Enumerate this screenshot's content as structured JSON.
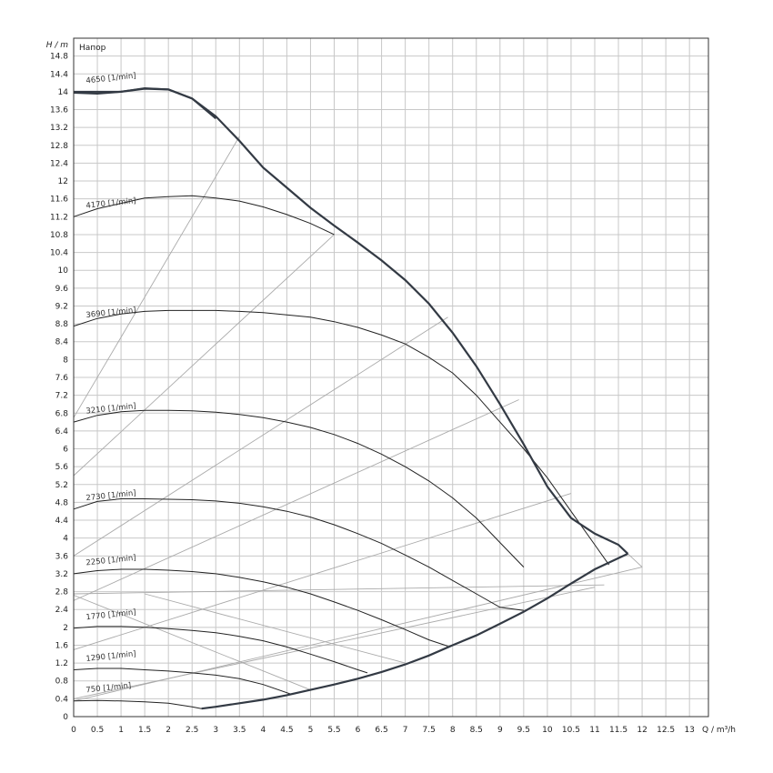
{
  "chart_data": {
    "type": "line",
    "y_axis_title": "H / m",
    "x_axis_title": "Q / m³/h",
    "inner_label": "Напор",
    "xlim": [
      0,
      13.4
    ],
    "ylim": [
      0,
      15.2
    ],
    "grid": true,
    "x_ticks": [
      0,
      0.5,
      1,
      1.5,
      2,
      2.5,
      3,
      3.5,
      4,
      4.5,
      5,
      5.5,
      6,
      6.5,
      7,
      7.5,
      8,
      8.5,
      9,
      9.5,
      10,
      10.5,
      11,
      11.5,
      12,
      12.5,
      13
    ],
    "y_ticks": [
      0,
      0.4,
      0.8,
      1.2,
      1.6,
      2,
      2.4,
      2.8,
      3.2,
      3.6,
      4,
      4.4,
      4.8,
      5.2,
      5.6,
      6,
      6.4,
      6.8,
      7.2,
      7.6,
      8,
      8.4,
      8.8,
      9.2,
      9.6,
      10,
      10.4,
      10.8,
      11.2,
      11.6,
      12,
      12.4,
      12.8,
      13.2,
      13.6,
      14,
      14.4,
      14.8
    ],
    "series": [
      {
        "name": "4650 [1/min]",
        "x": [
          0,
          1,
          1.5,
          2,
          2.5,
          3
        ],
        "y": [
          14.0,
          14.0,
          14.08,
          14.05,
          13.85,
          13.4
        ]
      },
      {
        "name": "4170 [1/min]",
        "x": [
          0,
          0.5,
          1,
          1.5,
          2,
          2.5,
          3,
          3.5,
          4,
          4.5,
          5,
          5.5
        ],
        "y": [
          11.2,
          11.38,
          11.5,
          11.62,
          11.65,
          11.67,
          11.62,
          11.55,
          11.42,
          11.25,
          11.05,
          10.8
        ]
      },
      {
        "name": "3690 [1/min]",
        "x": [
          0,
          0.5,
          1,
          1.5,
          2,
          2.5,
          3,
          3.5,
          4,
          4.5,
          5,
          5.5,
          6,
          6.5,
          7,
          7.5,
          8,
          8.5,
          9,
          9.5,
          10,
          10.5,
          11,
          11.3
        ],
        "y": [
          8.75,
          8.92,
          9.02,
          9.08,
          9.1,
          9.1,
          9.1,
          9.08,
          9.05,
          9.0,
          8.95,
          8.85,
          8.72,
          8.55,
          8.35,
          8.05,
          7.7,
          7.2,
          6.6,
          6.0,
          5.35,
          4.6,
          3.85,
          3.4
        ]
      },
      {
        "name": "3210 [1/min]",
        "x": [
          0,
          0.5,
          1,
          1.5,
          2,
          2.5,
          3,
          3.5,
          4,
          4.5,
          5,
          5.5,
          6,
          6.5,
          7,
          7.5,
          8,
          8.5,
          9,
          9.5
        ],
        "y": [
          6.6,
          6.75,
          6.83,
          6.86,
          6.86,
          6.85,
          6.82,
          6.77,
          6.7,
          6.6,
          6.48,
          6.32,
          6.12,
          5.88,
          5.6,
          5.28,
          4.9,
          4.45,
          3.9,
          3.35
        ]
      },
      {
        "name": "2730 [1/min]",
        "x": [
          0,
          0.5,
          1,
          1.5,
          2,
          2.5,
          3,
          3.5,
          4,
          4.5,
          5,
          5.5,
          6,
          6.5,
          7,
          7.5,
          8,
          8.5,
          9,
          9.5
        ],
        "y": [
          4.65,
          4.82,
          4.88,
          4.88,
          4.87,
          4.86,
          4.83,
          4.78,
          4.7,
          4.6,
          4.47,
          4.3,
          4.1,
          3.88,
          3.62,
          3.35,
          3.05,
          2.75,
          2.45,
          2.38
        ]
      },
      {
        "name": "2250 [1/min]",
        "x": [
          0,
          0.5,
          1,
          1.5,
          2,
          2.5,
          3,
          3.5,
          4,
          4.5,
          5,
          5.5,
          6,
          6.5,
          7,
          7.5,
          7.9
        ],
        "y": [
          3.2,
          3.27,
          3.3,
          3.3,
          3.28,
          3.25,
          3.2,
          3.12,
          3.02,
          2.9,
          2.75,
          2.57,
          2.38,
          2.17,
          1.95,
          1.72,
          1.58
        ]
      },
      {
        "name": "1770 [1/min]",
        "x": [
          0,
          0.5,
          1,
          1.5,
          2,
          2.5,
          3,
          3.5,
          4,
          4.5,
          5,
          5.5,
          6,
          6.2
        ],
        "y": [
          1.98,
          2.02,
          2.02,
          2.0,
          1.97,
          1.93,
          1.88,
          1.8,
          1.7,
          1.56,
          1.4,
          1.23,
          1.05,
          0.98
        ]
      },
      {
        "name": "1290 [1/min]",
        "x": [
          0,
          0.5,
          1,
          1.5,
          2,
          2.5,
          3,
          3.5,
          4,
          4.6
        ],
        "y": [
          1.05,
          1.08,
          1.08,
          1.05,
          1.02,
          0.98,
          0.93,
          0.85,
          0.72,
          0.5
        ]
      },
      {
        "name": "750 [1/min]",
        "x": [
          0,
          0.5,
          1,
          1.5,
          2,
          2.5,
          2.7
        ],
        "y": [
          0.35,
          0.36,
          0.35,
          0.33,
          0.3,
          0.22,
          0.18
        ]
      }
    ],
    "max_curve": {
      "x": [
        0,
        0.5,
        1,
        1.5,
        2,
        2.5,
        3,
        3.5,
        4,
        4.5,
        5,
        5.5,
        6,
        6.5,
        7,
        7.5,
        8,
        8.5,
        9,
        9.5,
        10,
        10.5,
        11,
        11.5,
        11.7
      ],
      "y": [
        13.98,
        13.96,
        14.0,
        14.07,
        14.05,
        13.85,
        13.45,
        12.9,
        12.3,
        11.85,
        11.4,
        11.0,
        10.62,
        10.22,
        9.78,
        9.25,
        8.6,
        7.85,
        7.0,
        6.1,
        5.15,
        4.45,
        4.1,
        3.85,
        3.65
      ]
    },
    "min_curve": {
      "x": [
        2.7,
        3,
        3.5,
        4,
        4.5,
        5,
        5.5,
        6,
        6.5,
        7,
        7.5,
        8,
        8.5,
        9,
        9.5,
        10,
        10.5,
        11,
        11.5,
        11.7
      ],
      "y": [
        0.18,
        0.22,
        0.3,
        0.38,
        0.48,
        0.6,
        0.72,
        0.85,
        1.0,
        1.17,
        1.37,
        1.6,
        1.82,
        2.08,
        2.35,
        2.65,
        2.98,
        3.3,
        3.55,
        3.65
      ]
    },
    "efficiency_lines": [
      {
        "x": [
          0,
          3.5
        ],
        "y": [
          6.7,
          13.0
        ]
      },
      {
        "x": [
          0,
          5.5
        ],
        "y": [
          5.4,
          10.8
        ]
      },
      {
        "x": [
          0,
          7.9
        ],
        "y": [
          3.6,
          8.95
        ]
      },
      {
        "x": [
          0,
          9.4
        ],
        "y": [
          2.6,
          7.1
        ]
      },
      {
        "x": [
          0,
          10.5
        ],
        "y": [
          1.5,
          5.0
        ]
      },
      {
        "x": [
          0,
          12.0
        ],
        "y": [
          0.35,
          3.35
        ]
      },
      {
        "x": [
          0,
          11.2
        ],
        "y": [
          2.75,
          2.95
        ]
      },
      {
        "x": [
          0,
          11.0
        ],
        "y": [
          0.4,
          2.9
        ]
      },
      {
        "x": [
          0,
          5.0
        ],
        "y": [
          2.72,
          0.6
        ]
      },
      {
        "x": [
          1.5,
          7.0
        ],
        "y": [
          2.75,
          1.2
        ]
      },
      {
        "x": [
          11.7,
          12.0
        ],
        "y": [
          3.65,
          3.35
        ]
      }
    ]
  }
}
